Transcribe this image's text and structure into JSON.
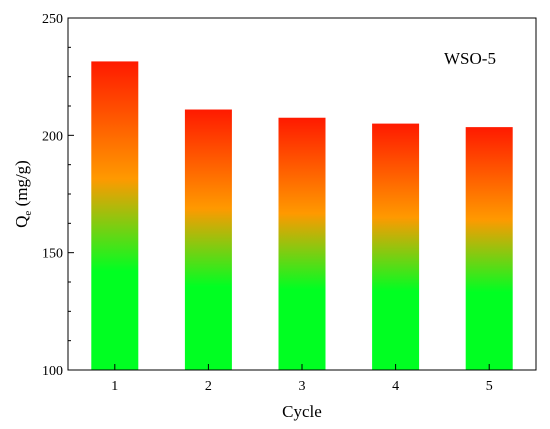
{
  "chart_data": {
    "type": "bar",
    "title": "",
    "annotation": "WSO-5",
    "xlabel": "Cycle",
    "ylabel_main": "Q",
    "ylabel_sub": "e",
    "ylabel_unit": " (mg/g)",
    "categories": [
      "1",
      "2",
      "3",
      "4",
      "5"
    ],
    "values": [
      231.5,
      211,
      207.5,
      205,
      203.5
    ],
    "ylim": [
      100,
      250
    ],
    "yticks": [
      100,
      150,
      200,
      250
    ],
    "grid": false,
    "legend": "none",
    "colors": {
      "bar_bottom": "#00ff22",
      "bar_middle": "#ff9900",
      "bar_top": "#ff1a00",
      "axis": "#000000"
    }
  }
}
